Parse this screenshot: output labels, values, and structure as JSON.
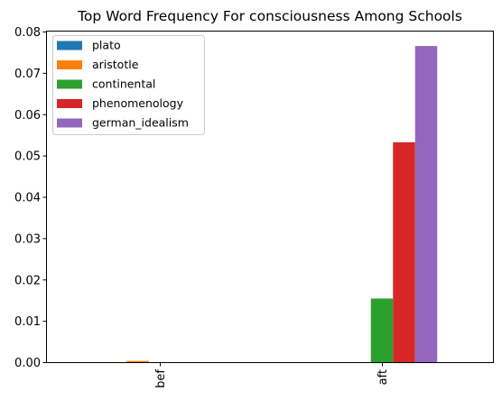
{
  "chart_data": {
    "type": "bar",
    "title": "Top Word Frequency For consciousness Among Schools",
    "xlabel": "",
    "ylabel": "",
    "categories": [
      "bef",
      "aft"
    ],
    "ylim": [
      0,
      0.08
    ],
    "yticks": [
      "0.00",
      "0.01",
      "0.02",
      "0.03",
      "0.04",
      "0.05",
      "0.06",
      "0.07",
      "0.08"
    ],
    "grid": false,
    "legend_position": "top-left",
    "series": [
      {
        "name": "plato",
        "color": "#1f77b4",
        "values": [
          0.0,
          0.0
        ]
      },
      {
        "name": "aristotle",
        "color": "#ff7f0e",
        "values": [
          0.0003,
          0.0
        ]
      },
      {
        "name": "continental",
        "color": "#2ca02c",
        "values": [
          0.0,
          0.0154
        ]
      },
      {
        "name": "phenomenology",
        "color": "#d62728",
        "values": [
          0.0,
          0.0532
        ]
      },
      {
        "name": "german_idealism",
        "color": "#9467bd",
        "values": [
          0.0,
          0.0765
        ]
      }
    ]
  }
}
